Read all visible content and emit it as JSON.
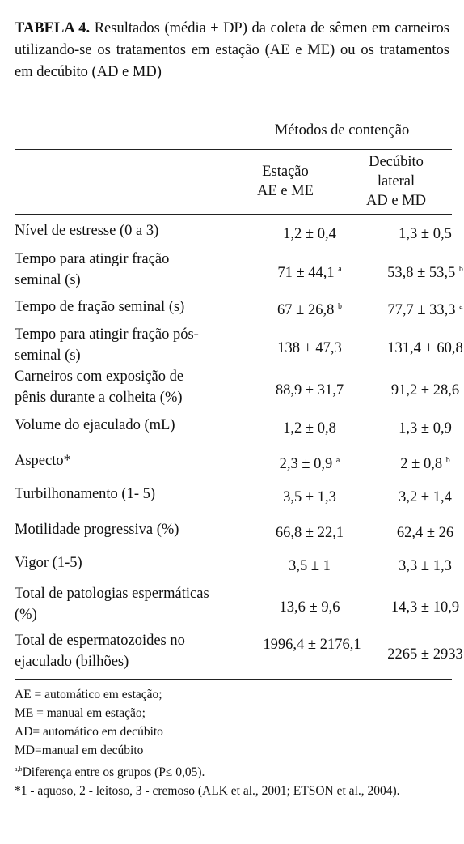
{
  "caption": {
    "label": "TABELA 4.",
    "text": "Resultados (média ± DP) da coleta de sêmen em carneiros utilizando-se os tratamentos em estação (AE e ME) ou os tratamentos em decúbito (AD e MD)"
  },
  "table": {
    "group_header": "Métodos de contenção",
    "col1": {
      "line1": "Estação",
      "line2": "AE e ME"
    },
    "col2": {
      "line1": "Decúbito",
      "line2": "lateral",
      "line3": "AD e MD"
    },
    "rows": [
      {
        "label": "Nível de estresse (0 a 3)",
        "v1": "1,2 ± 0,4",
        "v1_sup": "",
        "v2": "1,3 ± 0,5",
        "v2_sup": ""
      },
      {
        "label": "Tempo para atingir fração seminal (s)",
        "v1": "71 ± 44,1",
        "v1_sup": "a",
        "v2": "53,8 ± 53,5",
        "v2_sup": "b"
      },
      {
        "label": "Tempo de fração seminal (s)",
        "v1": "67 ± 26,8",
        "v1_sup": "b",
        "v2": "77,7 ± 33,3",
        "v2_sup": "a"
      },
      {
        "label": "Tempo para atingir fração pós-seminal (s)",
        "v1": "138 ± 47,3",
        "v1_sup": "",
        "v2": "131,4 ± 60,8",
        "v2_sup": ""
      },
      {
        "label": "Carneiros com exposição de pênis durante a colheita (%)",
        "v1": "88,9 ± 31,7",
        "v1_sup": "",
        "v2": "91,2 ± 28,6",
        "v2_sup": ""
      },
      {
        "label": "Volume do ejaculado (mL)",
        "v1": "1,2 ± 0,8",
        "v1_sup": "",
        "v2": "1,3 ± 0,9",
        "v2_sup": ""
      },
      {
        "label": "Aspecto*",
        "v1": "2,3 ± 0,9",
        "v1_sup": "a",
        "v2": "2 ± 0,8",
        "v2_sup": "b"
      },
      {
        "label": "Turbilhonamento (1- 5)",
        "v1": "3,5 ± 1,3",
        "v1_sup": "",
        "v2": "3,2 ± 1,4",
        "v2_sup": ""
      },
      {
        "label": "Motilidade progressiva (%)",
        "v1": "66,8 ± 22,1",
        "v1_sup": "",
        "v2": "62,4 ± 26",
        "v2_sup": ""
      },
      {
        "label": "Vigor (1-5)",
        "v1": "3,5 ± 1",
        "v1_sup": "",
        "v2": "3,3 ± 1,3",
        "v2_sup": ""
      },
      {
        "label": "Total de patologias espermáticas (%)",
        "v1": "13,6 ± 9,6",
        "v1_sup": "",
        "v2": "14,3 ± 10,9",
        "v2_sup": ""
      },
      {
        "label": "Total de espermatozoides no ejaculado (bilhões)",
        "v1": "1996,4 ± 2176,1",
        "v1_sup": "",
        "v2": "2265 ± 2933",
        "v2_sup": ""
      }
    ]
  },
  "notes": {
    "ae": "AE = automático em estação;",
    "me": "ME = manual em estação;",
    "ad": "AD= automático em decúbito",
    "md": "MD=manual em decúbito",
    "diff_sup": "a,b",
    "diff": "Diferença entre os grupos (P≤ 0,05).",
    "aspect": "*1 - aquoso, 2 - leitoso, 3 - cremoso  (ALK et al., 2001; ETSON et al., 2004)."
  }
}
